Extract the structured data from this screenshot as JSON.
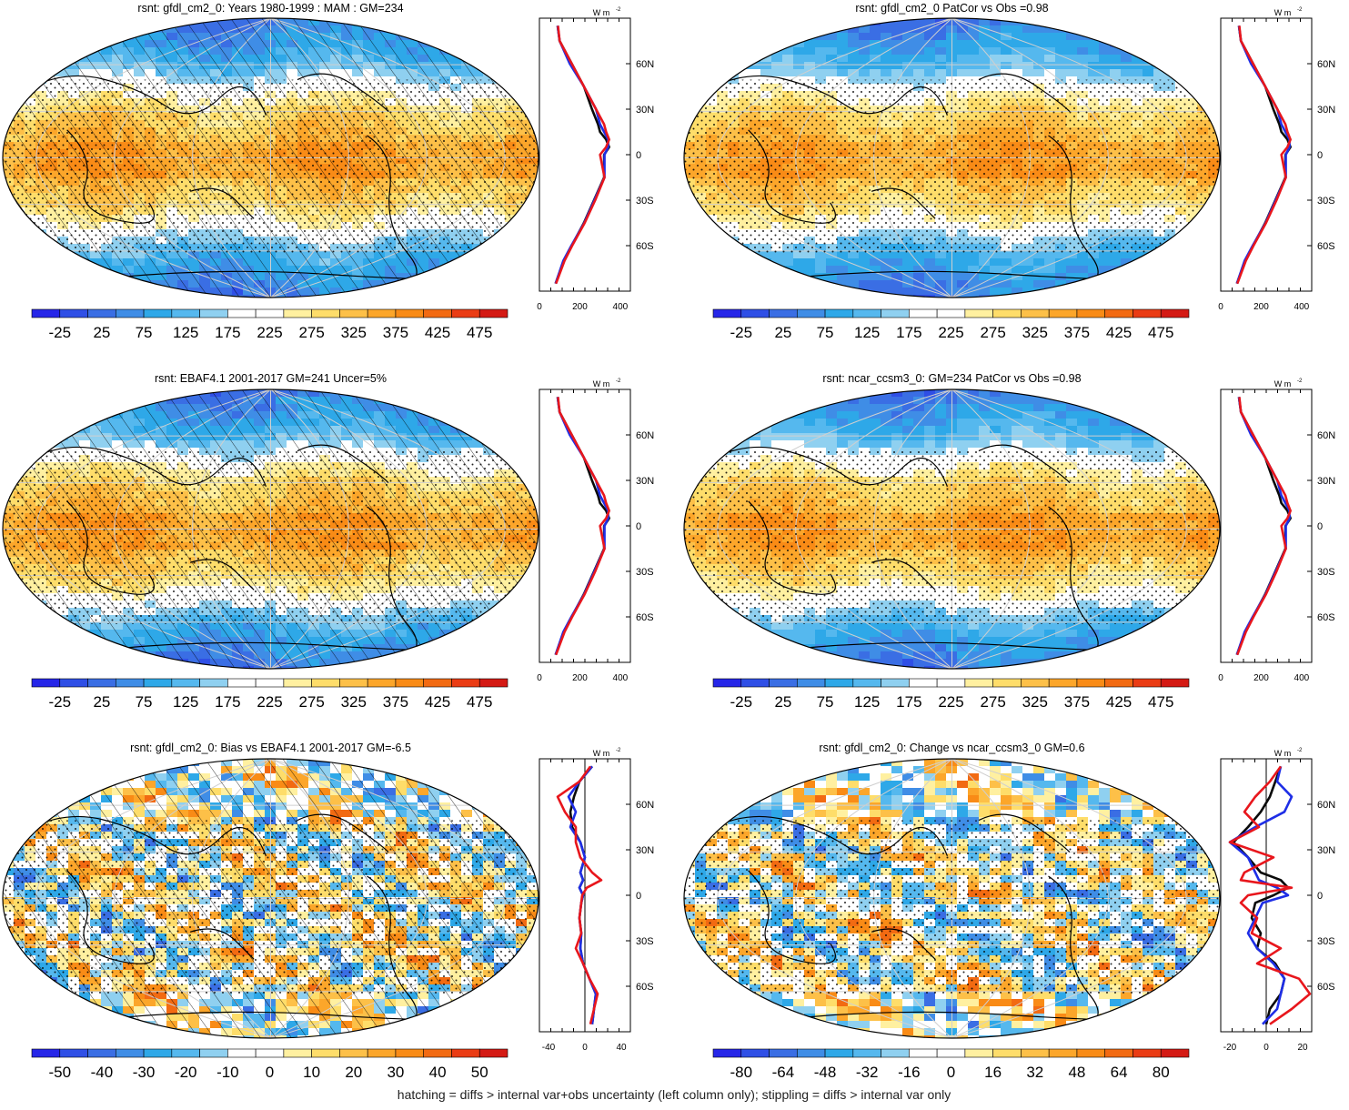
{
  "footnote": "hatching = diffs > internal var+obs uncertainty (left column only); stippling = diffs > internal var only",
  "profile_unit": "W m",
  "profile_unit_sup": "-2",
  "palettes": {
    "absolute": [
      "#2626e8",
      "#2f4fe6",
      "#3a6ee4",
      "#3f8de6",
      "#2ea8e8",
      "#55b8ee",
      "#8fd0f0",
      "#ffffff",
      "#ffffff",
      "#fff0a0",
      "#fedd6a",
      "#fdc048",
      "#fca62a",
      "#f98b16",
      "#f26a12",
      "#ea3c14",
      "#d41a14"
    ],
    "bias": [
      "#2626e8",
      "#2f4fe6",
      "#3a6ee4",
      "#3f8de6",
      "#2ea8e8",
      "#55b8ee",
      "#8fd0f0",
      "#ffffff",
      "#ffffff",
      "#fff0a0",
      "#fedd6a",
      "#fdc048",
      "#fca62a",
      "#f98b16",
      "#f26a12",
      "#ea3c14",
      "#d41a14"
    ]
  },
  "series_colors": {
    "model": "#0a0a0a",
    "obs": "#e8161c",
    "alt": "#1e2ee6"
  },
  "chart_data": [
    {
      "type": "heatmap",
      "title": "rsnt: gfdl_cm2_0: Years 1980-1999 : MAM : GM=234",
      "palette": "absolute",
      "colorbar_ticks": [
        "-25",
        "25",
        "75",
        "125",
        "175",
        "225",
        "275",
        "325",
        "375",
        "425",
        "475"
      ],
      "zonal_profile": {
        "xticks": [
          "0",
          "200",
          "400"
        ],
        "xlim": [
          0,
          450
        ],
        "yticks": [
          "60N",
          "30N",
          "0",
          "30S",
          "60S"
        ],
        "ylim": [
          -90,
          90
        ],
        "lat": [
          -85,
          -70,
          -60,
          -45,
          -30,
          -15,
          0,
          5,
          10,
          15,
          20,
          30,
          45,
          60,
          75,
          85
        ],
        "series": [
          {
            "color": "model",
            "values": [
              80,
              120,
              160,
              220,
              270,
              320,
              320,
              345,
              330,
              300,
              290,
              260,
              220,
              160,
              100,
              90
            ]
          },
          {
            "color": "alt",
            "values": [
              80,
              118,
              158,
              222,
              272,
              322,
              322,
              340,
              340,
              320,
              300,
              280,
              220,
              150,
              100,
              90
            ]
          },
          {
            "color": "obs",
            "values": [
              82,
              124,
              162,
              224,
              276,
              322,
              300,
              330,
              345,
              330,
              320,
              280,
              220,
              160,
              100,
              92
            ]
          }
        ]
      },
      "hatched": true
    },
    {
      "type": "heatmap",
      "title": "rsnt: gfdl_cm2_0 PatCor vs Obs =0.98",
      "palette": "absolute",
      "colorbar_ticks": [
        "-25",
        "25",
        "75",
        "125",
        "175",
        "225",
        "275",
        "325",
        "375",
        "425",
        "475"
      ],
      "zonal_profile": {
        "xticks": [
          "0",
          "200",
          "400"
        ],
        "xlim": [
          0,
          450
        ],
        "yticks": [
          "60N",
          "30N",
          "0",
          "30S",
          "60S"
        ],
        "ylim": [
          -90,
          90
        ],
        "lat": [
          -85,
          -70,
          -60,
          -45,
          -30,
          -15,
          0,
          5,
          10,
          15,
          20,
          30,
          45,
          60,
          75,
          85
        ],
        "series": [
          {
            "color": "model",
            "values": [
              80,
              120,
              160,
              220,
              270,
              320,
              320,
              345,
              330,
              300,
              290,
              260,
              220,
              160,
              100,
              90
            ]
          },
          {
            "color": "alt",
            "values": [
              80,
              118,
              158,
              222,
              272,
              322,
              322,
              340,
              340,
              320,
              300,
              280,
              220,
              150,
              100,
              90
            ]
          },
          {
            "color": "obs",
            "values": [
              82,
              124,
              162,
              224,
              276,
              322,
              300,
              330,
              345,
              330,
              320,
              280,
              220,
              160,
              100,
              92
            ]
          }
        ]
      },
      "hatched": false
    },
    {
      "type": "heatmap",
      "title": "rsnt: EBAF4.1 2001-2017 GM=241 Uncer=5%",
      "palette": "absolute",
      "colorbar_ticks": [
        "-25",
        "25",
        "75",
        "125",
        "175",
        "225",
        "275",
        "325",
        "375",
        "425",
        "475"
      ],
      "zonal_profile": {
        "xticks": [
          "0",
          "200",
          "400"
        ],
        "xlim": [
          0,
          450
        ],
        "yticks": [
          "60N",
          "30N",
          "0",
          "30S",
          "60S"
        ],
        "ylim": [
          -90,
          90
        ],
        "lat": [
          -85,
          -70,
          -60,
          -45,
          -30,
          -15,
          0,
          5,
          10,
          15,
          20,
          30,
          45,
          60,
          75,
          85
        ],
        "series": [
          {
            "color": "model",
            "values": [
              80,
              120,
              160,
              220,
              270,
              320,
              320,
              345,
              330,
              300,
              290,
              260,
              220,
              160,
              100,
              90
            ]
          },
          {
            "color": "alt",
            "values": [
              80,
              118,
              158,
              222,
              272,
              322,
              322,
              340,
              340,
              320,
              300,
              280,
              220,
              150,
              100,
              90
            ]
          },
          {
            "color": "obs",
            "values": [
              82,
              124,
              162,
              224,
              276,
              322,
              300,
              330,
              345,
              330,
              320,
              280,
              220,
              160,
              100,
              92
            ]
          }
        ]
      },
      "hatched": true
    },
    {
      "type": "heatmap",
      "title": "rsnt: ncar_ccsm3_0: GM=234 PatCor vs Obs =0.98",
      "palette": "absolute",
      "colorbar_ticks": [
        "-25",
        "25",
        "75",
        "125",
        "175",
        "225",
        "275",
        "325",
        "375",
        "425",
        "475"
      ],
      "zonal_profile": {
        "xticks": [
          "0",
          "200",
          "400"
        ],
        "xlim": [
          0,
          450
        ],
        "yticks": [
          "60N",
          "30N",
          "0",
          "30S",
          "60S"
        ],
        "ylim": [
          -90,
          90
        ],
        "lat": [
          -85,
          -70,
          -60,
          -45,
          -30,
          -15,
          0,
          5,
          10,
          15,
          20,
          30,
          45,
          60,
          75,
          85
        ],
        "series": [
          {
            "color": "model",
            "values": [
              80,
              120,
              160,
              220,
              270,
              320,
              320,
              345,
              330,
              300,
              290,
              260,
              220,
              160,
              100,
              90
            ]
          },
          {
            "color": "alt",
            "values": [
              80,
              118,
              158,
              222,
              272,
              322,
              322,
              340,
              340,
              320,
              300,
              280,
              220,
              150,
              100,
              90
            ]
          },
          {
            "color": "obs",
            "values": [
              82,
              124,
              162,
              224,
              276,
              322,
              300,
              330,
              345,
              330,
              320,
              280,
              220,
              160,
              100,
              92
            ]
          }
        ]
      },
      "hatched": false
    },
    {
      "type": "heatmap",
      "title": "rsnt: gfdl_cm2_0: Bias vs EBAF4.1 2001-2017 GM=-6.5",
      "palette": "bias",
      "colorbar_ticks": [
        "-50",
        "-40",
        "-30",
        "-20",
        "-10",
        "0",
        "10",
        "20",
        "30",
        "40",
        "50"
      ],
      "zonal_profile": {
        "xticks": [
          "-40",
          "0",
          "40"
        ],
        "xlim": [
          -50,
          50
        ],
        "yticks": [
          "60N",
          "30N",
          "0",
          "30S",
          "60S"
        ],
        "ylim": [
          -90,
          90
        ],
        "lat": [
          -85,
          -75,
          -65,
          -55,
          -45,
          -35,
          -25,
          -15,
          -5,
          0,
          5,
          10,
          15,
          25,
          35,
          45,
          55,
          65,
          75,
          85
        ],
        "series": [
          {
            "color": "model",
            "values": [
              8,
              10,
              12,
              5,
              -2,
              -5,
              -4,
              -6,
              -4,
              -2,
              -6,
              -2,
              -5,
              0,
              -5,
              -14,
              -16,
              -12,
              -6,
              8
            ]
          },
          {
            "color": "alt",
            "values": [
              8,
              10,
              12,
              5,
              -2,
              -5,
              -4,
              -6,
              -4,
              -2,
              -6,
              -2,
              -5,
              0,
              -5,
              -16,
              -10,
              -18,
              -6,
              8
            ]
          },
          {
            "color": "obs",
            "values": [
              6,
              10,
              14,
              5,
              -2,
              -10,
              -4,
              -6,
              -4,
              -3,
              2,
              18,
              8,
              -5,
              -10,
              -10,
              -22,
              -30,
              -6,
              6
            ]
          }
        ]
      },
      "hatched": true
    },
    {
      "type": "heatmap",
      "title": "rsnt: gfdl_cm2_0: Change vs ncar_ccsm3_0 GM=0.6",
      "palette": "bias",
      "colorbar_ticks": [
        "-80",
        "-64",
        "-48",
        "-32",
        "-16",
        "0",
        "16",
        "32",
        "48",
        "64",
        "80"
      ],
      "zonal_profile": {
        "xticks": [
          "-20",
          "0",
          "20"
        ],
        "xlim": [
          -25,
          25
        ],
        "yticks": [
          "60N",
          "30N",
          "0",
          "30S",
          "60S"
        ],
        "ylim": [
          -90,
          90
        ],
        "lat": [
          -85,
          -75,
          -65,
          -55,
          -45,
          -35,
          -25,
          -15,
          -5,
          0,
          5,
          10,
          15,
          25,
          35,
          45,
          55,
          65,
          75,
          85
        ],
        "series": [
          {
            "color": "model",
            "values": [
              0,
              2,
              8,
              10,
              5,
              -5,
              -3,
              -8,
              -6,
              4,
              12,
              8,
              -3,
              -10,
              -18,
              -10,
              -3,
              2,
              5,
              8
            ]
          },
          {
            "color": "alt",
            "values": [
              -2,
              6,
              8,
              10,
              4,
              -5,
              -10,
              -6,
              -2,
              12,
              6,
              -4,
              -6,
              -10,
              -20,
              -6,
              10,
              14,
              6,
              8
            ]
          },
          {
            "color": "obs",
            "values": [
              2,
              14,
              24,
              18,
              -5,
              8,
              -8,
              -5,
              -14,
              -10,
              14,
              -14,
              -12,
              4,
              -20,
              -4,
              -12,
              -6,
              2,
              8
            ]
          }
        ]
      },
      "hatched": false
    }
  ]
}
